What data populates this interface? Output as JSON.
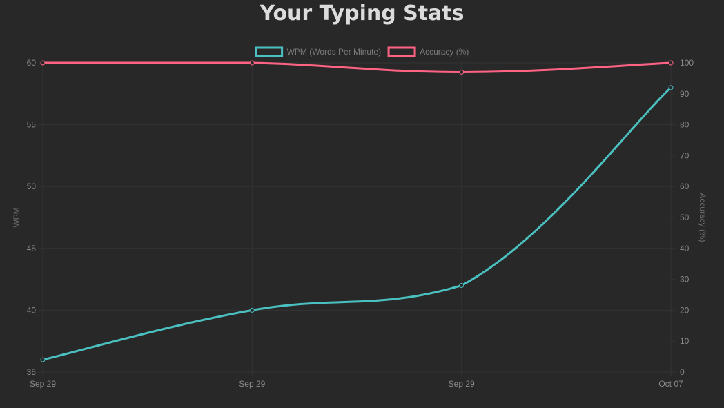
{
  "page": {
    "title": "Your Typing Stats"
  },
  "colors": {
    "background": "#282828",
    "grid": "#333333",
    "wpm": "#4bc0c0",
    "accuracy": "#ff6384"
  },
  "chart_data": {
    "type": "line",
    "title": "Your Typing Stats",
    "categories": [
      "Sep 29",
      "Sep 29",
      "Sep 29",
      "Oct 07"
    ],
    "series": [
      {
        "name": "WPM (Words Per Minute)",
        "axis": "left",
        "color": "#4bc0c0",
        "values": [
          36,
          40,
          42,
          58
        ]
      },
      {
        "name": "Accuracy (%)",
        "axis": "right",
        "color": "#ff6384",
        "values": [
          100,
          100,
          97,
          100
        ]
      }
    ],
    "y_left": {
      "label": "WPM",
      "ylim": [
        35,
        60
      ],
      "ticks": [
        35,
        40,
        45,
        50,
        55,
        60
      ]
    },
    "y_right": {
      "label": "Accuracy (%)",
      "ylim": [
        0,
        100
      ],
      "ticks": [
        0,
        10,
        20,
        30,
        40,
        50,
        60,
        70,
        80,
        90,
        100
      ]
    },
    "grid": true,
    "legend": "top"
  }
}
